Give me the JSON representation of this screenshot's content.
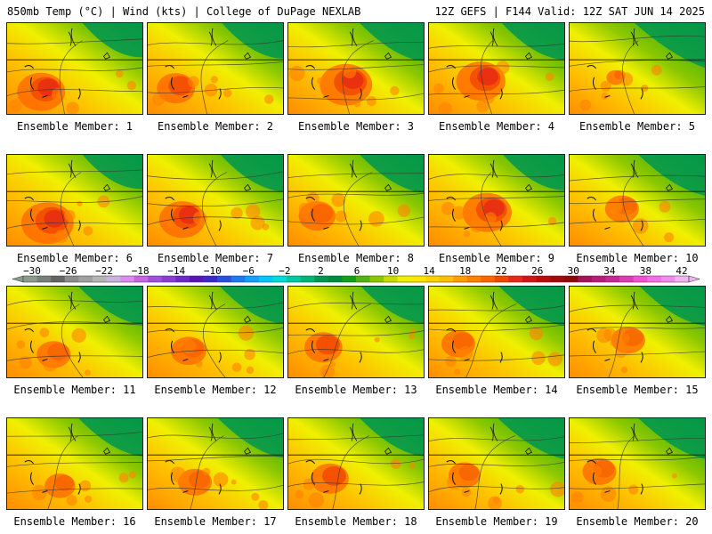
{
  "header": {
    "left": "850mb Temp (°C) | Wind (kts) | College of DuPage NEXLAB",
    "right": "12Z GEFS | F144 Valid: 12Z SAT JUN 14 2025"
  },
  "panels": [
    {
      "label": "Ensemble Member: 1",
      "heat": 0.78,
      "greenness": 0.3
    },
    {
      "label": "Ensemble Member: 2",
      "heat": 0.62,
      "greenness": 0.35
    },
    {
      "label": "Ensemble Member: 3",
      "heat": 0.85,
      "greenness": 0.45
    },
    {
      "label": "Ensemble Member: 4",
      "heat": 0.8,
      "greenness": 0.4
    },
    {
      "label": "Ensemble Member: 5",
      "heat": 0.3,
      "greenness": 0.7
    },
    {
      "label": "Ensemble Member: 6",
      "heat": 0.85,
      "greenness": 0.3
    },
    {
      "label": "Ensemble Member: 7",
      "heat": 0.75,
      "greenness": 0.4
    },
    {
      "label": "Ensemble Member: 8",
      "heat": 0.6,
      "greenness": 0.45
    },
    {
      "label": "Ensemble Member: 9",
      "heat": 0.8,
      "greenness": 0.35
    },
    {
      "label": "Ensemble Member: 10",
      "heat": 0.55,
      "greenness": 0.55
    },
    {
      "label": "Ensemble Member: 11",
      "heat": 0.55,
      "greenness": 0.45
    },
    {
      "label": "Ensemble Member: 12",
      "heat": 0.58,
      "greenness": 0.42
    },
    {
      "label": "Ensemble Member: 13",
      "heat": 0.62,
      "greenness": 0.4
    },
    {
      "label": "Ensemble Member: 14",
      "heat": 0.55,
      "greenness": 0.5
    },
    {
      "label": "Ensemble Member: 15",
      "heat": 0.55,
      "greenness": 0.5
    },
    {
      "label": "Ensemble Member: 16",
      "heat": 0.5,
      "greenness": 0.45
    },
    {
      "label": "Ensemble Member: 17",
      "heat": 0.55,
      "greenness": 0.5
    },
    {
      "label": "Ensemble Member: 18",
      "heat": 0.62,
      "greenness": 0.45
    },
    {
      "label": "Ensemble Member: 19",
      "heat": 0.52,
      "greenness": 0.55
    },
    {
      "label": "Ensemble Member: 20",
      "heat": 0.55,
      "greenness": 0.55
    }
  ],
  "colorbar": {
    "labels": [
      "−30",
      "−26",
      "−22",
      "−18",
      "−14",
      "−10",
      "−6",
      "−2",
      "2",
      "6",
      "10",
      "14",
      "18",
      "22",
      "26",
      "30",
      "34",
      "38",
      "42"
    ],
    "colors": [
      "#8c9c8c",
      "#78807a",
      "#646464",
      "#8c8c8c",
      "#a0a0a0",
      "#b4b4b4",
      "#c8b4dc",
      "#dc8cf0",
      "#c864e6",
      "#a050dc",
      "#8c3cd2",
      "#6e28c8",
      "#5a14b4",
      "#3c28c8",
      "#2850dc",
      "#1e78f0",
      "#14a0ff",
      "#00c8ff",
      "#00dcdc",
      "#00c8a0",
      "#00b478",
      "#009650",
      "#008c3c",
      "#14a014",
      "#50b414",
      "#8cc800",
      "#c8dc00",
      "#f0f000",
      "#ffe600",
      "#ffd200",
      "#ffbe00",
      "#ffa000",
      "#ff8200",
      "#ff6400",
      "#f04600",
      "#e62814",
      "#d21414",
      "#be0a0a",
      "#a00a0a",
      "#8c0a0a",
      "#a0145a",
      "#b41e78",
      "#c82896",
      "#dc3cb4",
      "#f050d2",
      "#f070e6",
      "#f08cf0",
      "#f0b4f0"
    ]
  }
}
